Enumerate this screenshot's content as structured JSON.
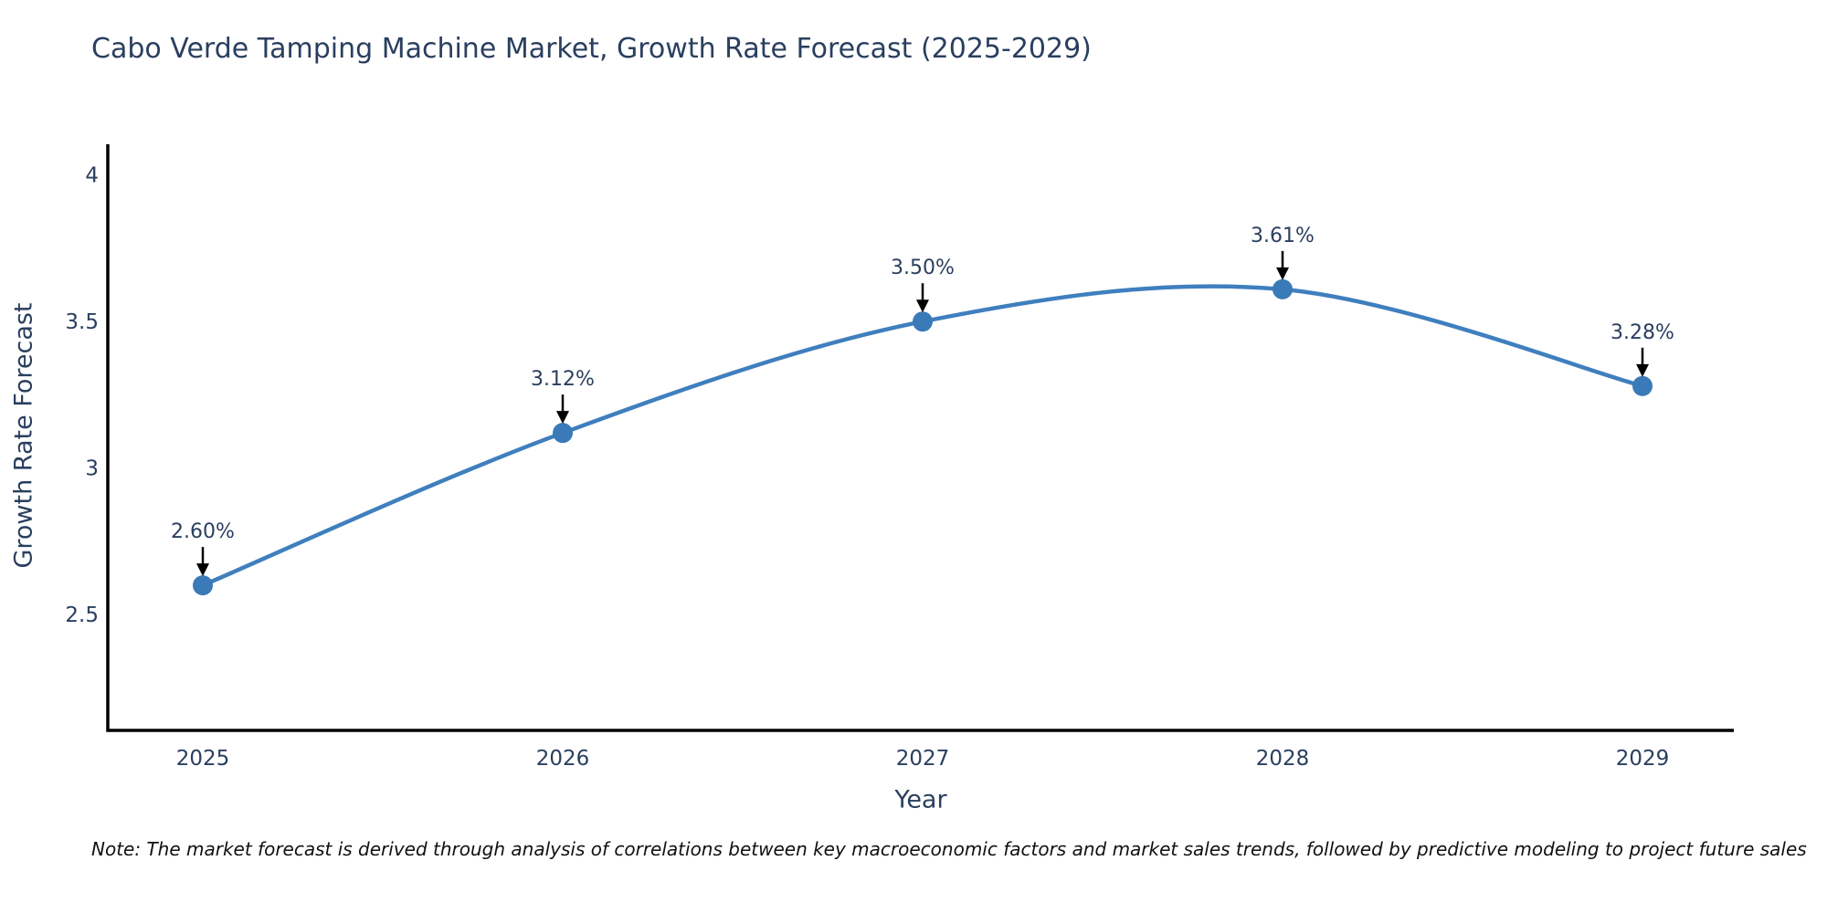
{
  "title": "Cabo Verde Tamping Machine Market, Growth Rate Forecast (2025-2029)",
  "chart_data": {
    "type": "line",
    "title": "Cabo Verde Tamping Machine Market, Growth Rate Forecast (2025-2029)",
    "xlabel": "Year",
    "ylabel": "Growth Rate Forecast",
    "x": [
      2025,
      2026,
      2027,
      2028,
      2029
    ],
    "values": [
      2.6,
      3.12,
      3.5,
      3.61,
      3.28
    ],
    "point_labels": [
      "2.60%",
      "3.12%",
      "3.50%",
      "3.61%",
      "3.28%"
    ],
    "yticks": [
      2.5,
      3,
      3.5,
      4
    ],
    "ytick_labels": [
      "2.5",
      "3",
      "3.5",
      "4"
    ],
    "ylim": [
      2.105,
      4.105
    ],
    "line_shape": "spline",
    "grid": false,
    "legend": false,
    "line_color": "#3f7fbe",
    "marker_color": "#3a7ab8",
    "annotation_arrow_color": "#000000",
    "text_color": "#2a3f5f",
    "axis_color": "#000000"
  },
  "note": {
    "text": "Note: The market forecast is derived through analysis of correlations between key macroeconomic factors and market sales trends, followed by predictive modeling to project future sales"
  }
}
